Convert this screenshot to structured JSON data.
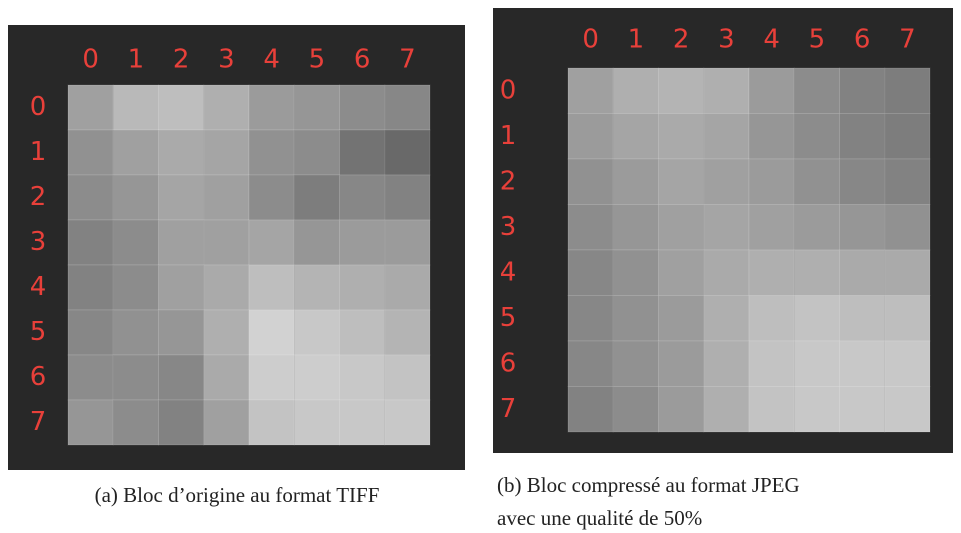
{
  "chart_data": [
    {
      "type": "heatmap",
      "caption": "(a) Bloc d’origine au format TIFF",
      "x": [
        "0",
        "1",
        "2",
        "3",
        "4",
        "5",
        "6",
        "7"
      ],
      "y": [
        "0",
        "1",
        "2",
        "3",
        "4",
        "5",
        "6",
        "7"
      ],
      "values": [
        [
          160,
          185,
          190,
          175,
          155,
          150,
          140,
          135
        ],
        [
          145,
          160,
          170,
          165,
          145,
          140,
          115,
          105
        ],
        [
          140,
          150,
          165,
          160,
          140,
          125,
          135,
          130
        ],
        [
          130,
          140,
          160,
          160,
          165,
          150,
          155,
          155
        ],
        [
          130,
          140,
          160,
          170,
          190,
          180,
          175,
          170
        ],
        [
          135,
          145,
          150,
          175,
          210,
          200,
          190,
          180
        ],
        [
          140,
          140,
          135,
          170,
          205,
          205,
          200,
          195
        ],
        [
          150,
          140,
          130,
          160,
          195,
          200,
          200,
          200
        ]
      ]
    },
    {
      "type": "heatmap",
      "caption": [
        "(b) Bloc compressé au format JPEG",
        "avec une qualité de 50%"
      ],
      "x": [
        "0",
        "1",
        "2",
        "3",
        "4",
        "5",
        "6",
        "7"
      ],
      "y": [
        "0",
        "1",
        "2",
        "3",
        "4",
        "5",
        "6",
        "7"
      ],
      "values": [
        [
          160,
          175,
          180,
          175,
          155,
          140,
          130,
          125
        ],
        [
          155,
          165,
          170,
          165,
          150,
          140,
          130,
          125
        ],
        [
          145,
          155,
          165,
          160,
          155,
          145,
          135,
          130
        ],
        [
          140,
          150,
          160,
          165,
          160,
          155,
          150,
          145
        ],
        [
          135,
          145,
          160,
          170,
          175,
          175,
          170,
          170
        ],
        [
          135,
          145,
          155,
          175,
          190,
          195,
          190,
          190
        ],
        [
          135,
          145,
          155,
          175,
          195,
          200,
          200,
          200
        ],
        [
          130,
          140,
          155,
          175,
          195,
          200,
          200,
          200
        ]
      ]
    }
  ]
}
